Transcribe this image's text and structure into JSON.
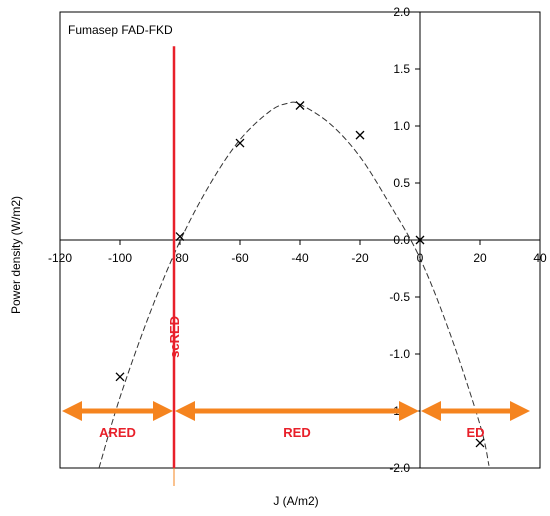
{
  "chart_data": {
    "type": "scatter",
    "title": "Fumasep FAD-FKD",
    "xlabel": "J (A/m2)",
    "ylabel": "Power density (W/m2)",
    "xlim": [
      -120,
      40
    ],
    "ylim": [
      -2.0,
      2.0
    ],
    "x_ticks": [
      "-120",
      "-100",
      "-80",
      "-60",
      "-40",
      "-20",
      "0",
      "20",
      "40"
    ],
    "y_ticks": [
      "2.0",
      "1.5",
      "1.0",
      "0.5",
      "0.0",
      "-0.5",
      "-1.0",
      "-1.5",
      "-2.0"
    ],
    "grid": false,
    "series": [
      {
        "values_xy": [
          [
            -100,
            -1.2
          ],
          [
            -80,
            0.03
          ],
          [
            -60,
            0.85
          ],
          [
            -40,
            1.18
          ],
          [
            -20,
            0.92
          ],
          [
            0,
            0.0
          ],
          [
            20,
            -1.78
          ]
        ]
      }
    ],
    "fit_curve": {
      "style": "dashed",
      "x": [
        -107,
        -100,
        -90,
        -80,
        -70,
        -60,
        -50,
        -44,
        -40,
        -30,
        -20,
        -10,
        0,
        10,
        20,
        23
      ],
      "y": [
        -2.0,
        -1.38,
        -0.64,
        -0.01,
        0.49,
        0.88,
        1.13,
        1.2,
        1.19,
        1.02,
        0.73,
        0.31,
        -0.16,
        -0.82,
        -1.62,
        -1.98
      ]
    },
    "vertical_line": {
      "x": -82,
      "label": "scRED",
      "color": "#e8202a"
    },
    "regions": [
      {
        "label": "ARED",
        "from": -120,
        "to": -82
      },
      {
        "label": "RED",
        "from": -82,
        "to": 0
      },
      {
        "label": "ED",
        "from": 0,
        "to": 40
      }
    ],
    "region_arrow_y": -1.5,
    "colors": {
      "arrow": "#f5841f",
      "label": "#e8202a",
      "marker": "#000000"
    }
  }
}
